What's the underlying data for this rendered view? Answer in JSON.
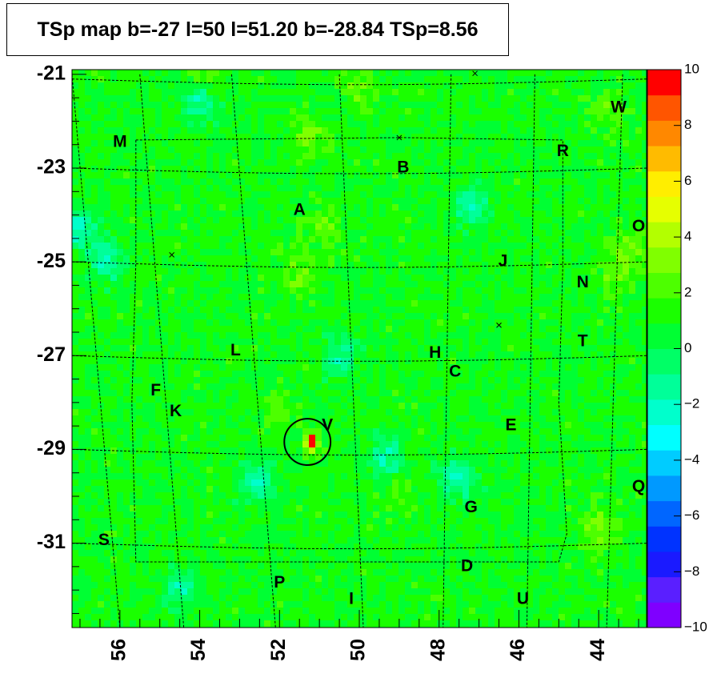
{
  "chart_data": {
    "type": "heatmap",
    "title": "TSp map b=-27 l=50 l=51.20 b=-28.84 TSp=8.56",
    "xlabel": "",
    "ylabel": "",
    "x_axis": {
      "reversed": true,
      "range": [
        57.2,
        42.8
      ],
      "ticks": [
        "56",
        "54",
        "52",
        "50",
        "48",
        "46",
        "44"
      ],
      "tick_values": [
        56,
        54,
        52,
        50,
        48,
        46,
        44
      ]
    },
    "y_axis": {
      "range": [
        -32.8,
        -20.9
      ],
      "ticks": [
        "-21",
        "-23",
        "-25",
        "-27",
        "-29",
        "-31"
      ],
      "tick_values": [
        -21,
        -23,
        -25,
        -27,
        -29,
        -31
      ]
    },
    "z_axis": {
      "range": [
        -10,
        10
      ],
      "ticks": [
        "10",
        "8",
        "6",
        "4",
        "2",
        "0",
        "−2",
        "−4",
        "−6",
        "−8",
        "−10"
      ]
    },
    "background_level": 1.0,
    "peak": {
      "l": 51.2,
      "b": -28.84,
      "tsp": 8.56
    },
    "circle": {
      "l": 51.3,
      "b": -28.84,
      "radius_deg": 0.58
    },
    "labels": [
      {
        "text": "M",
        "l": 56.0,
        "b": -22.45
      },
      {
        "text": "W",
        "l": 43.5,
        "b": -21.72
      },
      {
        "text": "R",
        "l": 44.9,
        "b": -22.65
      },
      {
        "text": "B",
        "l": 48.9,
        "b": -23.0
      },
      {
        "text": "A",
        "l": 51.5,
        "b": -23.9
      },
      {
        "text": "O",
        "l": 43.0,
        "b": -24.25
      },
      {
        "text": "J",
        "l": 46.4,
        "b": -25.0
      },
      {
        "text": "N",
        "l": 44.4,
        "b": -25.45
      },
      {
        "text": "L",
        "l": 53.1,
        "b": -26.9
      },
      {
        "text": "H",
        "l": 48.1,
        "b": -26.95
      },
      {
        "text": "T",
        "l": 44.4,
        "b": -26.7
      },
      {
        "text": "C",
        "l": 47.6,
        "b": -27.35
      },
      {
        "text": "F",
        "l": 55.1,
        "b": -27.75
      },
      {
        "text": "K",
        "l": 54.6,
        "b": -28.2
      },
      {
        "text": "V",
        "l": 50.8,
        "b": -28.5
      },
      {
        "text": "E",
        "l": 46.2,
        "b": -28.5
      },
      {
        "text": "Q",
        "l": 43.0,
        "b": -29.8
      },
      {
        "text": "G",
        "l": 47.2,
        "b": -30.25
      },
      {
        "text": "S",
        "l": 56.4,
        "b": -30.95
      },
      {
        "text": "D",
        "l": 47.3,
        "b": -31.5
      },
      {
        "text": "P",
        "l": 52.0,
        "b": -31.85
      },
      {
        "text": "I",
        "l": 50.2,
        "b": -32.2
      },
      {
        "text": "U",
        "l": 45.9,
        "b": -32.2
      }
    ],
    "hotspots": [
      {
        "l": 51.5,
        "b": -25.2,
        "v": 3.0
      },
      {
        "l": 51.2,
        "b": -22.3,
        "v": 2.8
      },
      {
        "l": 50.9,
        "b": -24.2,
        "v": 2.6
      },
      {
        "l": 44.0,
        "b": -30.7,
        "v": 3.2
      },
      {
        "l": 43.8,
        "b": -21.8,
        "v": 2.6
      },
      {
        "l": 43.6,
        "b": -25.3,
        "v": 2.5
      },
      {
        "l": 53.8,
        "b": -20.9,
        "v": 3.0
      },
      {
        "l": 50.0,
        "b": -21.3,
        "v": 2.5
      },
      {
        "l": 52.0,
        "b": -28.2,
        "v": 2.4
      },
      {
        "l": 43.2,
        "b": -24.8,
        "v": 3.0
      },
      {
        "l": 49.0,
        "b": -30.0,
        "v": 2.2
      }
    ],
    "coldspots": [
      {
        "l": 54.0,
        "b": -21.6,
        "v": -1.8
      },
      {
        "l": 47.5,
        "b": -29.6,
        "v": -2.6
      },
      {
        "l": 49.3,
        "b": -29.2,
        "v": -2.0
      },
      {
        "l": 52.6,
        "b": -29.7,
        "v": -2.0
      },
      {
        "l": 56.3,
        "b": -25.0,
        "v": -2.2
      },
      {
        "l": 47.2,
        "b": -23.8,
        "v": -1.8
      },
      {
        "l": 50.5,
        "b": -27.0,
        "v": -1.5
      },
      {
        "l": 54.5,
        "b": -32.0,
        "v": -1.6
      },
      {
        "l": 57.0,
        "b": -24.3,
        "v": -2.4
      }
    ]
  },
  "colors": {
    "palette": [
      "#7f00ff",
      "#5a1fff",
      "#1a1aff",
      "#0033ff",
      "#0066ff",
      "#0099ff",
      "#00ccff",
      "#00ffff",
      "#00ffcc",
      "#00ff99",
      "#00ff66",
      "#00ff33",
      "#1aff00",
      "#4dff00",
      "#80ff00",
      "#b3ff00",
      "#e6ff00",
      "#ffee00",
      "#ffbb00",
      "#ff8800",
      "#ff5500",
      "#ff0000"
    ]
  }
}
